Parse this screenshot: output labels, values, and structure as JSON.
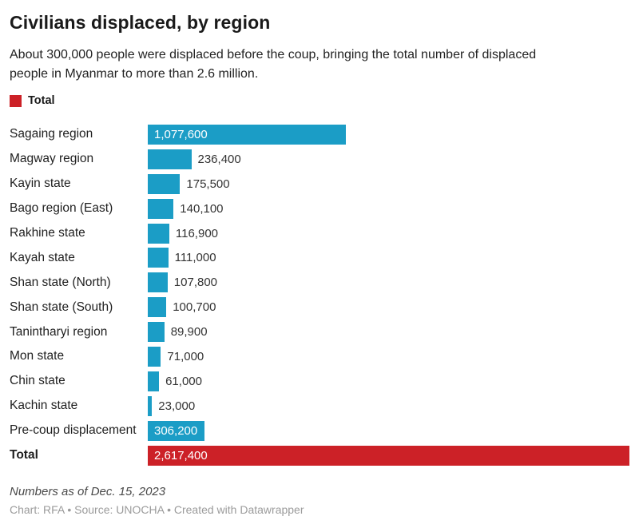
{
  "header": {
    "title": "Civilians displaced, by region",
    "subtitle_line1": "About 300,000 people were displaced before the coup, bringing the total number of displaced",
    "subtitle_line2": "people in Myanmar to more than 2.6 million."
  },
  "legend": {
    "label": "Total"
  },
  "colors": {
    "bar_blue": "#1b9dc6",
    "bar_red": "#cc2127",
    "inside_label": "#ffffff",
    "outside_label": "#333333"
  },
  "chart_data": {
    "type": "bar",
    "orientation": "horizontal",
    "title": "Civilians displaced, by region",
    "xlabel": "",
    "ylabel": "",
    "xlim": [
      0,
      2617400
    ],
    "grid": false,
    "legend_position": "top-left",
    "categories": [
      "Sagaing region",
      "Magway region",
      "Kayin state",
      "Bago region (East)",
      "Rakhine state",
      "Kayah state",
      "Shan state (North)",
      "Shan state (South)",
      "Tanintharyi region",
      "Mon state",
      "Chin state",
      "Kachin state",
      "Pre-coup displacement",
      "Total"
    ],
    "values": [
      1077600,
      236400,
      175500,
      140100,
      116900,
      111000,
      107800,
      100700,
      89900,
      71000,
      61000,
      23000,
      306200,
      2617400
    ],
    "max_value": 2617400,
    "rows": [
      {
        "label": "Sagaing region",
        "value": 1077600,
        "display": "1,077,600"
      },
      {
        "label": "Magway region",
        "value": 236400,
        "display": "236,400"
      },
      {
        "label": "Kayin state",
        "value": 175500,
        "display": "175,500"
      },
      {
        "label": "Bago region (East)",
        "value": 140100,
        "display": "140,100"
      },
      {
        "label": "Rakhine state",
        "value": 116900,
        "display": "116,900"
      },
      {
        "label": "Kayah state",
        "value": 111000,
        "display": "111,000"
      },
      {
        "label": "Shan state (North)",
        "value": 107800,
        "display": "107,800"
      },
      {
        "label": "Shan state (South)",
        "value": 100700,
        "display": "100,700"
      },
      {
        "label": "Tanintharyi region",
        "value": 89900,
        "display": "89,900"
      },
      {
        "label": "Mon state",
        "value": 71000,
        "display": "71,000"
      },
      {
        "label": "Chin state",
        "value": 61000,
        "display": "61,000"
      },
      {
        "label": "Kachin state",
        "value": 23000,
        "display": "23,000"
      },
      {
        "label": "Pre-coup displacement",
        "value": 306200,
        "display": "306,200"
      },
      {
        "label": "Total",
        "value": 2617400,
        "display": "2,617,400",
        "is_total": true
      }
    ]
  },
  "footer": {
    "note": "Numbers as of Dec. 15, 2023",
    "credit": "Chart: RFA • Source: UNOCHA • Created with Datawrapper"
  }
}
